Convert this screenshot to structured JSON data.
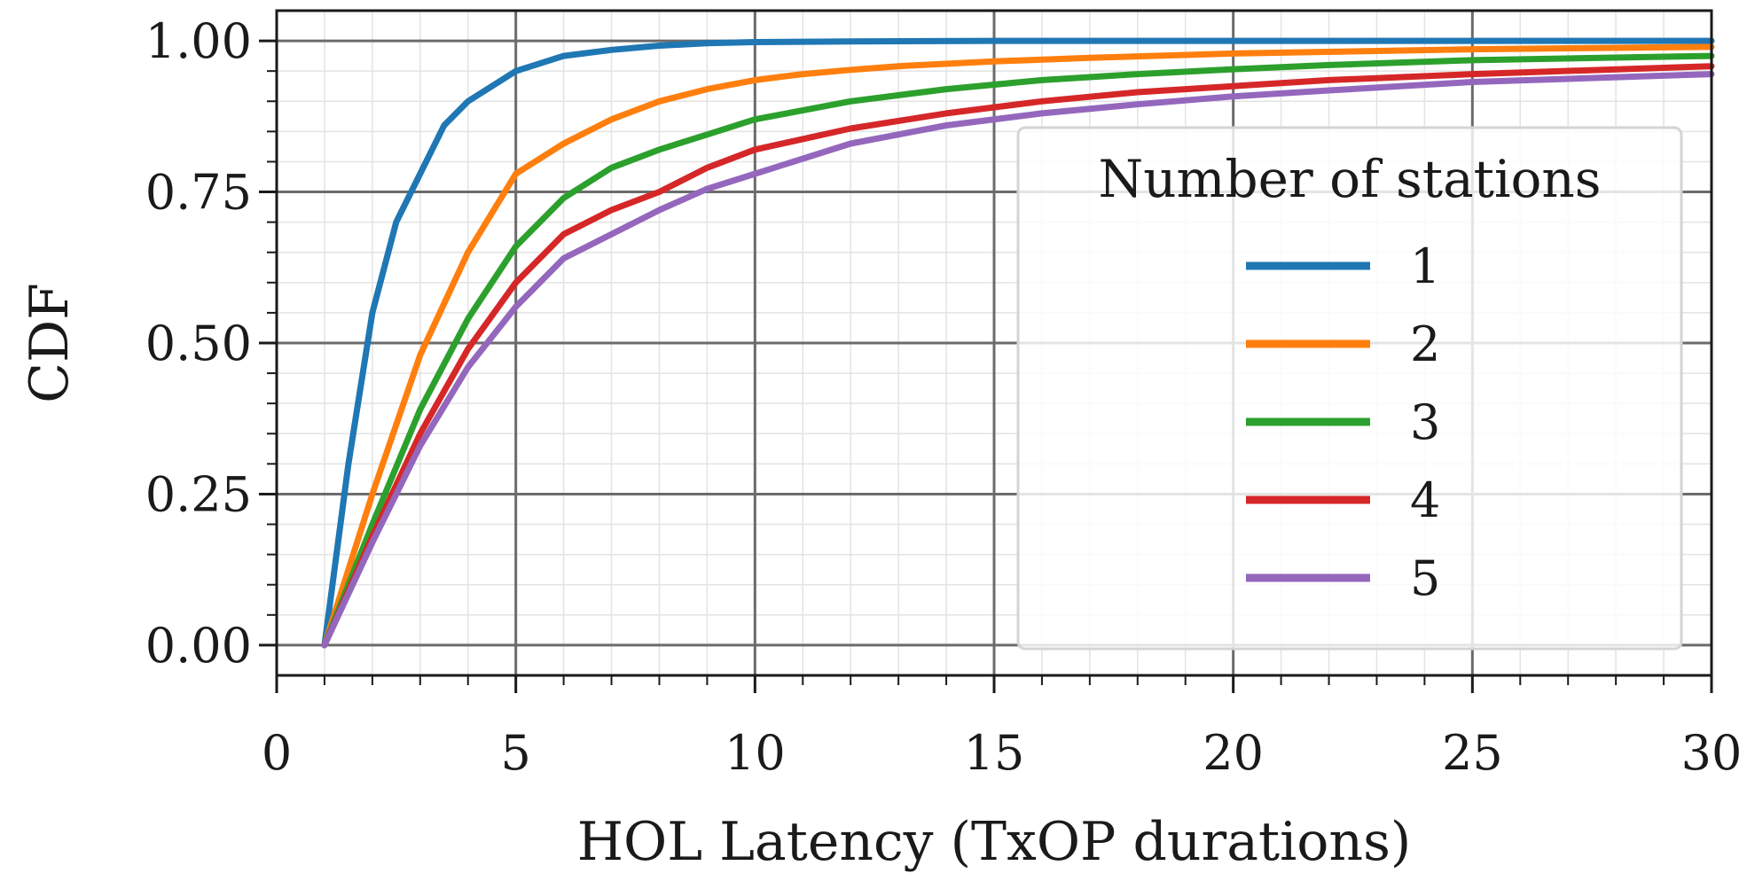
{
  "chart_data": {
    "type": "line",
    "title": "",
    "xlabel": "HOL Latency (TxOP durations)",
    "ylabel": "CDF",
    "xlim": [
      0,
      30
    ],
    "ylim": [
      -0.05,
      1.05
    ],
    "x_ticks": [
      0,
      5,
      10,
      15,
      20,
      25,
      30
    ],
    "x_tick_labels": [
      "0",
      "5",
      "10",
      "15",
      "20",
      "25",
      "30"
    ],
    "y_ticks": [
      0,
      0.25,
      0.5,
      0.75,
      1.0
    ],
    "y_tick_labels": [
      "0.00",
      "0.25",
      "0.50",
      "0.75",
      "1.00"
    ],
    "grid": "major and minor",
    "legend": {
      "title": "Number of stations",
      "placement": "center-right"
    },
    "series": [
      {
        "name": "1",
        "color": "#1f77b4",
        "x": [
          1,
          1.5,
          2,
          2.5,
          3,
          3.5,
          4,
          5,
          6,
          7,
          8,
          9,
          10,
          12,
          15,
          20,
          25,
          30
        ],
        "y": [
          0,
          0.3,
          0.55,
          0.7,
          0.78,
          0.86,
          0.9,
          0.95,
          0.975,
          0.985,
          0.992,
          0.996,
          0.998,
          0.999,
          1.0,
          1.0,
          1.0,
          1.0
        ]
      },
      {
        "name": "2",
        "color": "#ff7f0e",
        "x": [
          1,
          2,
          3,
          4,
          5,
          6,
          7,
          8,
          9,
          10,
          11,
          12,
          13,
          15,
          17,
          20,
          25,
          30
        ],
        "y": [
          0,
          0.25,
          0.48,
          0.65,
          0.78,
          0.83,
          0.87,
          0.9,
          0.92,
          0.935,
          0.945,
          0.952,
          0.958,
          0.966,
          0.972,
          0.979,
          0.986,
          0.99
        ]
      },
      {
        "name": "3",
        "color": "#2ca02c",
        "x": [
          1,
          2,
          3,
          4,
          5,
          6,
          7,
          8,
          9,
          10,
          12,
          14,
          16,
          18,
          20,
          22,
          25,
          30
        ],
        "y": [
          0,
          0.2,
          0.39,
          0.54,
          0.66,
          0.74,
          0.79,
          0.82,
          0.845,
          0.87,
          0.9,
          0.92,
          0.935,
          0.945,
          0.953,
          0.96,
          0.968,
          0.975
        ]
      },
      {
        "name": "4",
        "color": "#d62728",
        "x": [
          1,
          2,
          3,
          4,
          5,
          6,
          7,
          8,
          9,
          10,
          12,
          14,
          16,
          18,
          20,
          22,
          25,
          30
        ],
        "y": [
          0,
          0.18,
          0.35,
          0.49,
          0.6,
          0.68,
          0.72,
          0.75,
          0.79,
          0.82,
          0.855,
          0.88,
          0.9,
          0.915,
          0.925,
          0.935,
          0.945,
          0.958
        ]
      },
      {
        "name": "5",
        "color": "#9467bd",
        "x": [
          1,
          2,
          3,
          4,
          5,
          6,
          7,
          8,
          9,
          10,
          12,
          14,
          16,
          18,
          20,
          22,
          25,
          30
        ],
        "y": [
          0,
          0.17,
          0.33,
          0.46,
          0.56,
          0.64,
          0.68,
          0.72,
          0.755,
          0.78,
          0.83,
          0.86,
          0.88,
          0.895,
          0.908,
          0.918,
          0.932,
          0.945
        ]
      }
    ]
  }
}
